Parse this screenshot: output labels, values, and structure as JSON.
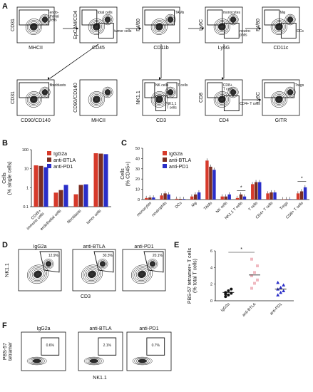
{
  "panels": {
    "A": "A",
    "B": "B",
    "C": "C",
    "D": "D",
    "E": "E",
    "F": "F"
  },
  "panel_a": {
    "row1": [
      {
        "y": "CD31",
        "x": "MHCII",
        "gates": [
          "endo-\nthelial\ncells"
        ]
      },
      {
        "y": "EpCAM/CD4",
        "x": "CD45",
        "gates": [
          "total cells",
          "tumor cells"
        ]
      },
      {
        "y": "F4/80",
        "x": "CD11b",
        "gates": [
          "TAMs"
        ]
      },
      {
        "y": "Ly6C",
        "x": "Ly6G",
        "gates": [
          "monocytes",
          "neutro-\nphils"
        ]
      },
      {
        "y": "F4/80",
        "x": "CD11c",
        "gates": [
          "Mφ",
          "DCs"
        ]
      }
    ],
    "row2": [
      {
        "y": "CD31",
        "x": "CD90/CD140",
        "gates": [
          "fibroblasts"
        ]
      },
      {
        "y": "CD90/CD140",
        "x": "MHCII",
        "gates": []
      },
      {
        "y": "NK1.1",
        "x": "CD3",
        "gates": [
          "NK cells",
          "NK1.1\nT cells",
          "T cells"
        ]
      },
      {
        "y": "CD8",
        "x": "CD4",
        "gates": [
          "CD8+\nT cells",
          "CD4+ T cells"
        ]
      },
      {
        "y": "Ly6C",
        "x": "GITR",
        "gates": [
          "Tregs"
        ]
      }
    ]
  },
  "legend": [
    "IgG2a",
    "anti-BTLA",
    "anti-PD1"
  ],
  "colors": {
    "IgG2a": "#d63a2b",
    "anti-BTLA": "#7a2e22",
    "anti-PD1": "#2a2ec8",
    "tetramer_points": "#f0b8c0"
  },
  "chart_data": [
    {
      "type": "bar",
      "panel": "B",
      "ylabel": "Cells\n(% single cells)",
      "yscale": "log",
      "ylim": [
        0.1,
        100
      ],
      "yticks": [
        "0.1",
        "1",
        "10",
        "100"
      ],
      "categories": [
        "CD45+\nimmune cells",
        "endothelial cells",
        "fibroblasts",
        "tumor cells"
      ],
      "series": [
        {
          "name": "IgG2a",
          "values": [
            15,
            0.55,
            0.45,
            65
          ]
        },
        {
          "name": "anti-BTLA",
          "values": [
            14,
            0.75,
            1.4,
            62
          ]
        },
        {
          "name": "anti-PD1",
          "values": [
            12,
            1.4,
            1.5,
            58
          ]
        }
      ]
    },
    {
      "type": "bar",
      "panel": "C",
      "ylabel": "Cells\n(% CD45+)",
      "ylim": [
        0,
        50
      ],
      "yticks": [
        "0",
        "10",
        "20",
        "30",
        "40",
        "50"
      ],
      "categories": [
        "monocytes",
        "neutrophils",
        "DCs",
        "Mφ",
        "TAMs",
        "NK cells",
        "NK1.1 T cells",
        "T cells",
        "CD4+ T cells",
        "Tregs",
        "CD8+ T cells"
      ],
      "series": [
        {
          "name": "IgG2a",
          "values": [
            1.5,
            4,
            0.8,
            3,
            38,
            3,
            1.5,
            15,
            6,
            0.3,
            6
          ]
        },
        {
          "name": "anti-BTLA",
          "values": [
            2,
            6,
            0.7,
            5,
            32,
            3,
            5,
            17,
            7,
            0.4,
            8
          ]
        },
        {
          "name": "anti-PD1",
          "values": [
            2,
            5,
            0.6,
            7,
            29,
            5,
            3,
            17,
            7,
            0.4,
            12
          ]
        }
      ],
      "annotations": [
        "*",
        "*"
      ]
    },
    {
      "type": "scatter",
      "panel": "E",
      "ylabel": "PBS-57 tetramer+ T cells\n(% total T cells)",
      "ylim": [
        0,
        6
      ],
      "yticks": [
        "0",
        "2",
        "4",
        "6"
      ],
      "categories": [
        "IgG2a",
        "anti-BTLA",
        "anti-PD1"
      ],
      "series": [
        {
          "name": "IgG2a",
          "values": [
            0.5,
            0.7,
            0.9,
            1.0,
            1.2,
            1.4,
            0.8
          ],
          "mean": 1.0
        },
        {
          "name": "anti-BTLA",
          "values": [
            1.5,
            2.1,
            2.5,
            3.0,
            3.4,
            4.2,
            5.0
          ],
          "mean": 3.1
        },
        {
          "name": "anti-PD1",
          "values": [
            0.7,
            1.0,
            1.2,
            1.4,
            1.6,
            1.9,
            2.2
          ],
          "mean": 1.4
        }
      ],
      "annotations": [
        "*"
      ]
    }
  ],
  "panel_d": {
    "y": "NK1.1",
    "x": "CD3",
    "plots": [
      {
        "title": "IgG2a",
        "pct": "12.9%"
      },
      {
        "title": "anti-BTLA",
        "pct": "30.3%"
      },
      {
        "title": "anti-PD1",
        "pct": "20.1%"
      }
    ]
  },
  "panel_f": {
    "y": "PBS-57\ntetramer",
    "x": "NK1.1",
    "plots": [
      {
        "title": "IgG2a",
        "pct": "0.6%"
      },
      {
        "title": "anti-BTLA",
        "pct": "2.1%"
      },
      {
        "title": "anti-PD1",
        "pct": "0.7%"
      }
    ]
  }
}
